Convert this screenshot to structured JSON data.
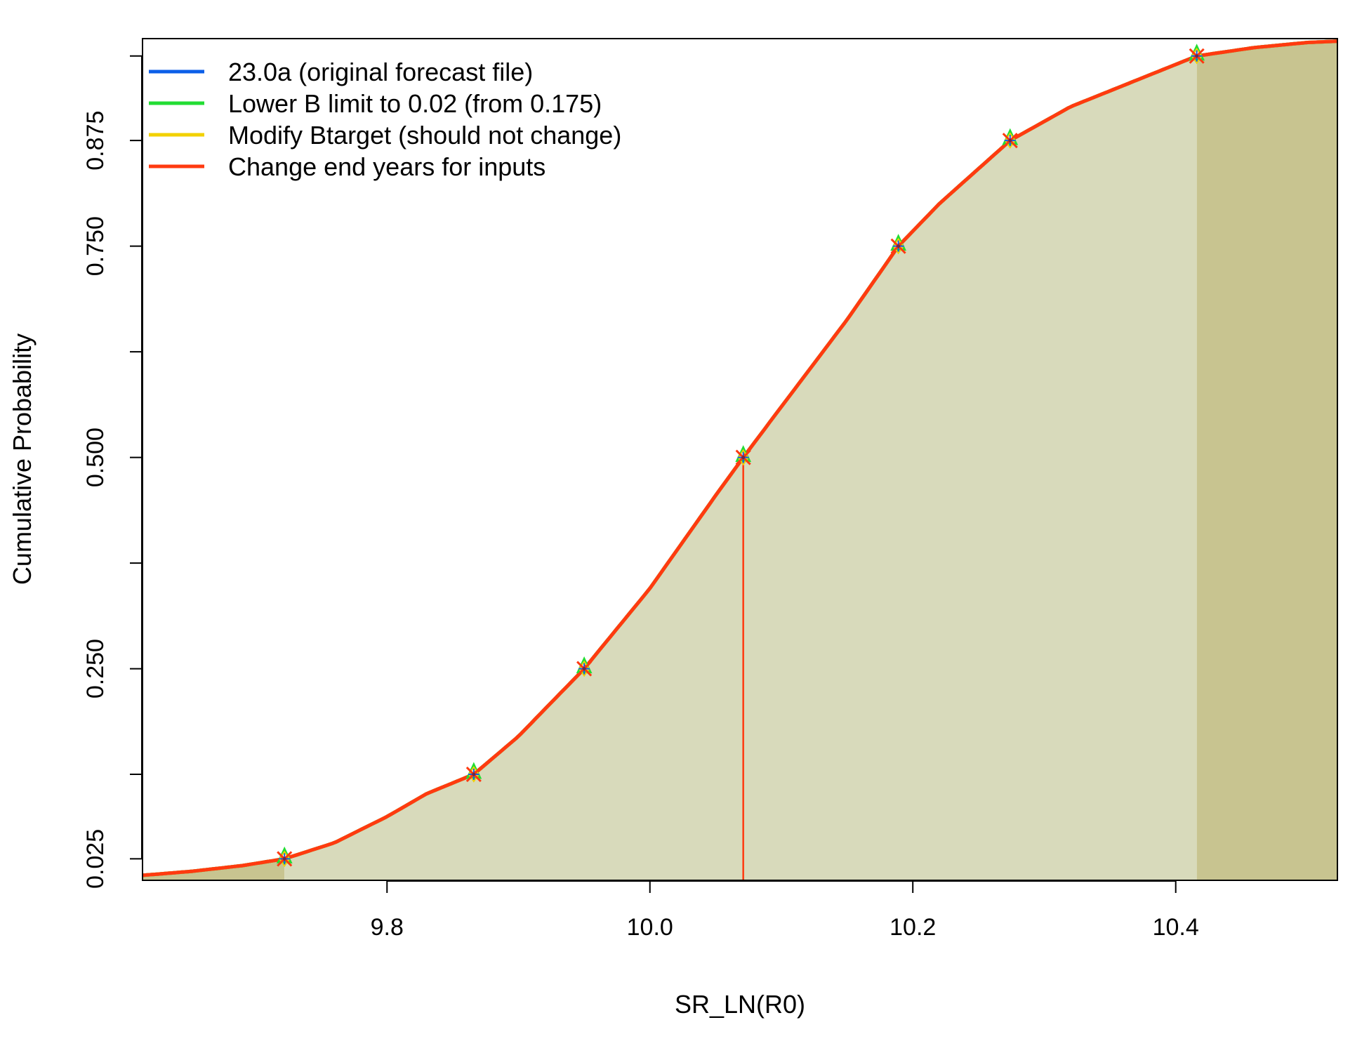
{
  "chart_data": {
    "type": "line",
    "xlabel": "SR_LN(R0)",
    "ylabel": "Cumulative Probability",
    "xlim": [
      9.614,
      10.523
    ],
    "ylim": [
      -0.0004,
      0.9956
    ],
    "x_ticks": [
      9.8,
      10.0,
      10.2,
      10.4
    ],
    "x_tick_labels": [
      "9.8",
      "10.0",
      "10.2",
      "10.4"
    ],
    "y_ticks": [
      0.025,
      0.125,
      0.25,
      0.375,
      0.5,
      0.625,
      0.75,
      0.875,
      0.975
    ],
    "y_tick_labels": [
      "0.025",
      "",
      "0.250",
      "",
      "0.500",
      "",
      "0.750",
      "0.875",
      ""
    ],
    "grid": false,
    "legend_position": "top-left",
    "series": [
      {
        "name": "23.0a (original forecast file)",
        "color": "#0b5fe8"
      },
      {
        "name": "Lower B limit to 0.02 (from 0.175)",
        "color": "#22dd33"
      },
      {
        "name": "Modify Btarget (should not change)",
        "color": "#f2d100"
      },
      {
        "name": "Change end years for inputs",
        "color": "#ff3a10"
      }
    ],
    "curve": {
      "description_free": true,
      "x": [
        9.614,
        9.65,
        9.69,
        9.722,
        9.76,
        9.8,
        9.83,
        9.866,
        9.9,
        9.95,
        10.0,
        10.05,
        10.071,
        10.1,
        10.15,
        10.189,
        10.22,
        10.274,
        10.32,
        10.36,
        10.416,
        10.46,
        10.5,
        10.523
      ],
      "y": [
        0.0055,
        0.01,
        0.017,
        0.025,
        0.044,
        0.075,
        0.102,
        0.125,
        0.17,
        0.25,
        0.345,
        0.455,
        0.5,
        0.56,
        0.663,
        0.75,
        0.8,
        0.875,
        0.915,
        0.94,
        0.975,
        0.985,
        0.991,
        0.9925
      ]
    },
    "quantile_markers": {
      "x": [
        9.722,
        9.866,
        9.95,
        10.071,
        10.189,
        10.274,
        10.416
      ],
      "y": [
        0.025,
        0.125,
        0.25,
        0.5,
        0.75,
        0.875,
        0.975
      ]
    },
    "median": {
      "x": 10.071,
      "y": 0.5
    },
    "shading": {
      "outer_color": "#c8c490",
      "inner_color": "#d8dabb",
      "interval": [
        9.722,
        10.416
      ]
    }
  }
}
